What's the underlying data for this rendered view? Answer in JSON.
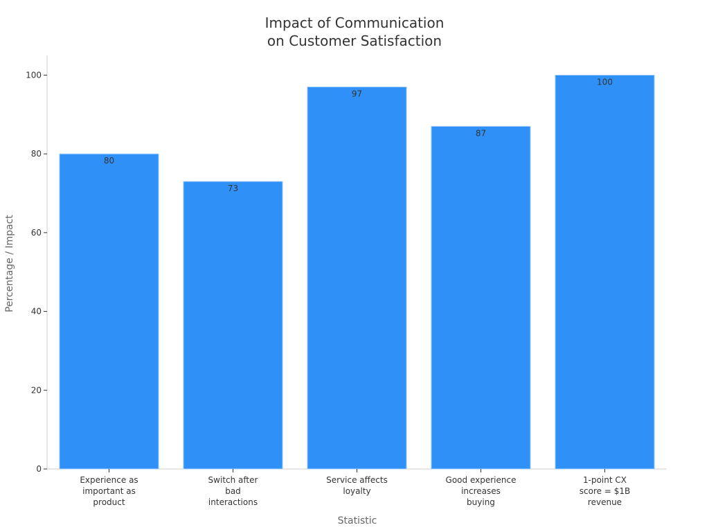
{
  "chart_data": {
    "type": "bar",
    "title": "Impact of Communication\non Customer Satisfaction",
    "xlabel": "Statistic",
    "ylabel": "Percentage / Impact",
    "categories": [
      "Experience as\nimportant as\nproduct",
      "Switch after\nbad\ninteractions",
      "Service affects\nloyalty",
      "Good experience\nincreases\nbuying",
      "1-point CX\nscore = $1B\nrevenue"
    ],
    "values": [
      80,
      73,
      97,
      87,
      100
    ],
    "data_labels": [
      "80",
      "73",
      "97",
      "87",
      "100"
    ],
    "ylim": [
      0,
      105
    ],
    "yticks": [
      0,
      20,
      40,
      60,
      80,
      100
    ],
    "grid": false,
    "legend": "none",
    "bar_color": "#2f91f7",
    "bar_edge_color": "#a9d0f8",
    "axis_color": "#cccccc",
    "text_color": "#333333",
    "label_color": "#666666"
  }
}
